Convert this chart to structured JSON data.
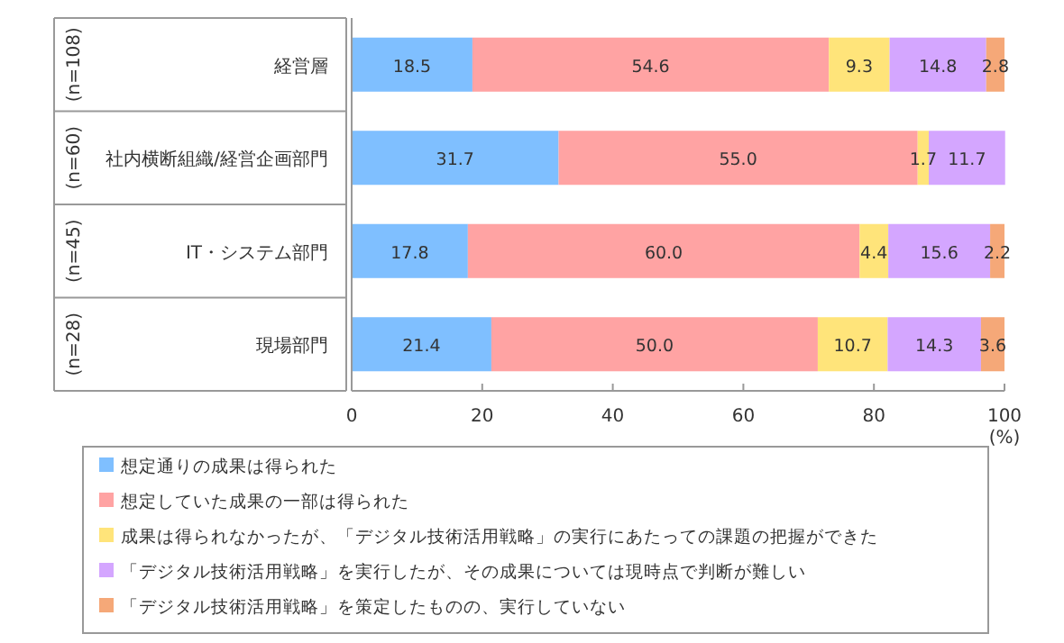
{
  "chart_data": {
    "type": "bar",
    "orientation": "horizontal",
    "stacked": true,
    "categories": [
      "経営層",
      "社内横断組織/経営企画部門",
      "IT・システム部門",
      "現場部門"
    ],
    "annotations": [
      "(n=108)",
      "(n=60)",
      "(n=45)",
      "(n=28)"
    ],
    "series": [
      {
        "name": "想定通りの成果は得られた",
        "color": "#7fbfff",
        "values": [
          18.5,
          31.7,
          17.8,
          21.4
        ],
        "value_labels": [
          "18.5",
          "31.7",
          "17.8",
          "21.4"
        ]
      },
      {
        "name": "想定していた成果の一部は得られた",
        "color": "#ffa3a3",
        "values": [
          54.6,
          55.0,
          60.0,
          50.0
        ],
        "value_labels": [
          "54.6",
          "55.0",
          "60.0",
          "50.0"
        ]
      },
      {
        "name": "成果は得られなかったが、「デジタル技術活用戦略」の実行にあたっての課題の把握ができた",
        "color": "#ffe47a",
        "values": [
          9.3,
          1.7,
          4.4,
          10.7
        ],
        "value_labels": [
          "9.3",
          "1.7",
          "4.4",
          "10.7"
        ]
      },
      {
        "name": "「デジタル技術活用戦略」を実行したが、その成果については現時点で判断が難しい",
        "color": "#d4a6ff",
        "values": [
          14.8,
          11.7,
          15.6,
          14.3
        ],
        "value_labels": [
          "14.8",
          "11.7",
          "15.6",
          "14.3"
        ]
      },
      {
        "name": "「デジタル技術活用戦略」を策定したものの、実行していない",
        "color": "#f5a878",
        "values": [
          2.8,
          null,
          2.2,
          3.6
        ],
        "value_labels": [
          "2.8",
          null,
          "2.2",
          "3.6"
        ]
      }
    ],
    "xlim": [
      0,
      100
    ],
    "xticks": [
      0,
      20,
      40,
      60,
      80,
      100
    ],
    "xlabel": "(%)",
    "legend": "bottom",
    "grid": false
  }
}
